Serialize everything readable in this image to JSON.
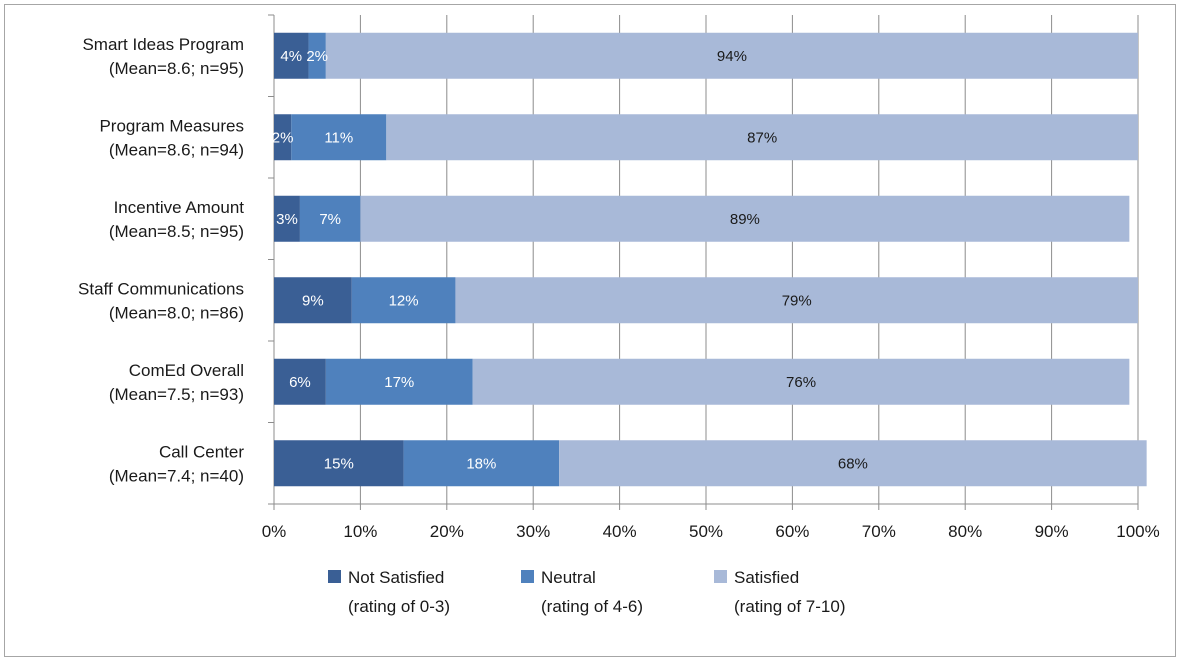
{
  "chart_data": {
    "type": "bar",
    "orientation": "horizontal",
    "stacked": true,
    "title": "",
    "xlabel": "",
    "ylabel": "",
    "xlim": [
      0,
      100
    ],
    "grid": true,
    "legend_position": "bottom",
    "categories": [
      {
        "line1": "Smart Ideas Program",
        "line2": "(Mean=8.6; n=95)"
      },
      {
        "line1": "Program Measures",
        "line2": "(Mean=8.6; n=94)"
      },
      {
        "line1": "Incentive Amount",
        "line2": "(Mean=8.5; n=95)"
      },
      {
        "line1": "Staff Communications",
        "line2": "(Mean=8.0; n=86)"
      },
      {
        "line1": "ComEd Overall",
        "line2": "(Mean=7.5; n=93)"
      },
      {
        "line1": "Call Center",
        "line2": "(Mean=7.4; n=40)"
      }
    ],
    "series": [
      {
        "name": "Not Satisfied",
        "subtitle": "(rating of 0-3)",
        "color": "#3a5f95",
        "label_color": "#ffffff",
        "values": [
          4,
          2,
          3,
          9,
          6,
          15
        ],
        "labels": [
          "4%",
          "2%",
          "3%",
          "9%",
          "6%",
          "15%"
        ]
      },
      {
        "name": "Neutral",
        "subtitle": "(rating of 4-6)",
        "color": "#4f81bd",
        "label_color": "#ffffff",
        "values": [
          2,
          11,
          7,
          12,
          17,
          18
        ],
        "labels": [
          "2%",
          "11%",
          "7%",
          "12%",
          "17%",
          "18%"
        ]
      },
      {
        "name": "Satisfied",
        "subtitle": "(rating of 7-10)",
        "color": "#a8b9d8",
        "label_color": "#1a1a1a",
        "values": [
          94,
          87,
          89,
          79,
          76,
          68
        ],
        "labels": [
          "94%",
          "87%",
          "89%",
          "79%",
          "76%",
          "68%"
        ]
      }
    ],
    "x_ticks": [
      {
        "value": 0,
        "label": "0%"
      },
      {
        "value": 10,
        "label": "10%"
      },
      {
        "value": 20,
        "label": "20%"
      },
      {
        "value": 30,
        "label": "30%"
      },
      {
        "value": 40,
        "label": "40%"
      },
      {
        "value": 50,
        "label": "50%"
      },
      {
        "value": 60,
        "label": "60%"
      },
      {
        "value": 70,
        "label": "70%"
      },
      {
        "value": 80,
        "label": "80%"
      },
      {
        "value": 90,
        "label": "90%"
      },
      {
        "value": 100,
        "label": "100%"
      }
    ]
  }
}
